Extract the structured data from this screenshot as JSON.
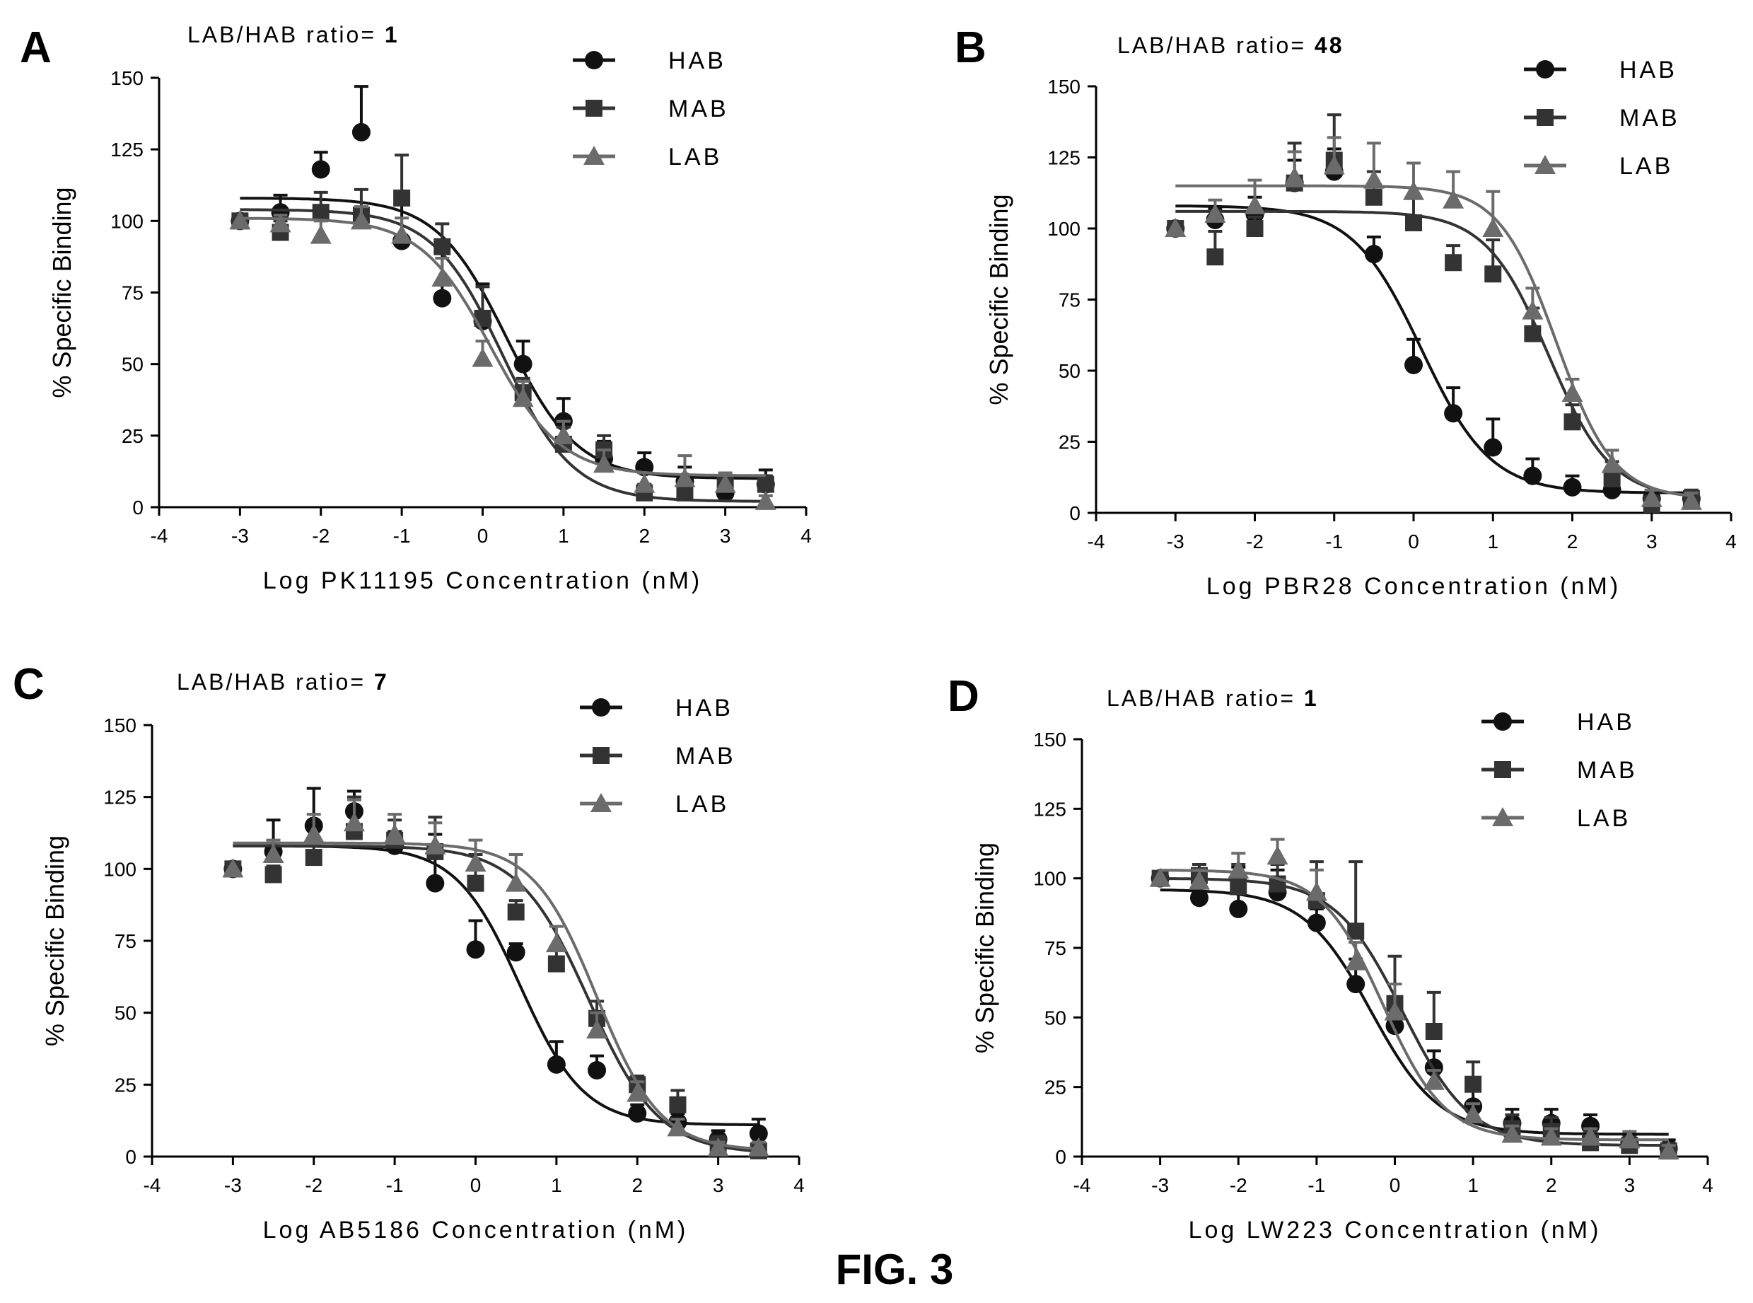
{
  "figure_label": "FIG. 3",
  "legend_labels": [
    "HAB",
    "MAB",
    "LAB"
  ],
  "colors": {
    "HAB": "#111111",
    "MAB": "#333333",
    "LAB": "#6b6b6b"
  },
  "chart_data": [
    {
      "type": "scatter",
      "panel": "A",
      "ratio_label": "LAB/HAB ratio= ",
      "ratio_value": "1",
      "xlabel": "Log PK11195 Concentration (nM)",
      "ylabel": "% Specific Binding",
      "xlim": [
        -4,
        4
      ],
      "ylim": [
        0,
        150
      ],
      "xticks": [
        "-4",
        "-3",
        "-2",
        "-1",
        "0",
        "1",
        "2",
        "3",
        "4"
      ],
      "yticks": [
        "0",
        "25",
        "50",
        "75",
        "100",
        "125",
        "150"
      ],
      "legend_position": "top-right",
      "series": [
        {
          "name": "HAB",
          "marker": "circle",
          "x": [
            -3,
            -2.5,
            -2,
            -1.5,
            -1,
            -0.5,
            0,
            0.5,
            1,
            1.5,
            2,
            2.5,
            3,
            3.5
          ],
          "y": [
            100,
            103,
            118,
            131,
            93,
            73,
            65,
            50,
            30,
            17,
            14,
            9,
            5,
            8
          ],
          "err": [
            0,
            6,
            6,
            16,
            17,
            17,
            13,
            8,
            8,
            6,
            5,
            5,
            5,
            5
          ],
          "fit": {
            "top": 108,
            "bottom": 10,
            "logic50": 0.3,
            "hill": 1
          }
        },
        {
          "name": "MAB",
          "marker": "square",
          "x": [
            -3,
            -2.5,
            -2,
            -1.5,
            -1,
            -0.5,
            0,
            0.5,
            1,
            1.5,
            2,
            2.5,
            3,
            3.5
          ],
          "y": [
            100,
            96,
            103,
            102,
            108,
            91,
            66,
            40,
            22,
            20,
            5,
            5,
            8,
            8
          ],
          "err": [
            0,
            4,
            7,
            9,
            15,
            8,
            11,
            5,
            6,
            5,
            3,
            4,
            3,
            3
          ],
          "fit": {
            "top": 104,
            "bottom": 2,
            "logic50": 0.25,
            "hill": 1
          }
        },
        {
          "name": "LAB",
          "marker": "triangle",
          "x": [
            -3,
            -2.5,
            -2,
            -1.5,
            -1,
            -0.5,
            0,
            0.5,
            1,
            1.5,
            2,
            2.5,
            3,
            3.5
          ],
          "y": [
            100,
            99,
            95,
            100,
            95,
            80,
            52,
            38,
            25,
            15,
            8,
            10,
            8,
            2
          ],
          "err": [
            0,
            3,
            5,
            5,
            6,
            7,
            6,
            6,
            5,
            5,
            4,
            8,
            4,
            2
          ],
          "fit": {
            "top": 101,
            "bottom": 11,
            "logic50": 0.1,
            "hill": 1
          }
        }
      ]
    },
    {
      "type": "scatter",
      "panel": "B",
      "ratio_label": "LAB/HAB ratio= ",
      "ratio_value": "48",
      "xlabel": "Log PBR28 Concentration (nM)",
      "ylabel": "% Specific Binding",
      "xlim": [
        -4,
        4
      ],
      "ylim": [
        0,
        150
      ],
      "xticks": [
        "-4",
        "-3",
        "-2",
        "-1",
        "0",
        "1",
        "2",
        "3",
        "4"
      ],
      "yticks": [
        "0",
        "25",
        "50",
        "75",
        "100",
        "125",
        "150"
      ],
      "legend_position": "top-right",
      "series": [
        {
          "name": "HAB",
          "marker": "circle",
          "x": [
            -3,
            -2.5,
            -2,
            -1.5,
            -1,
            -0.5,
            0,
            0.5,
            1,
            1.5,
            2,
            2.5,
            3,
            3.5
          ],
          "y": [
            100,
            103,
            105,
            116,
            120,
            91,
            52,
            35,
            23,
            13,
            9,
            8,
            5,
            5
          ],
          "err": [
            0,
            4,
            6,
            8,
            8,
            6,
            9,
            9,
            10,
            6,
            4,
            4,
            3,
            3
          ],
          "fit": {
            "top": 108,
            "bottom": 7,
            "logic50": 0.1,
            "hill": 1
          }
        },
        {
          "name": "MAB",
          "marker": "square",
          "x": [
            -3,
            -2.5,
            -2,
            -1.5,
            -1,
            -0.5,
            0,
            0.5,
            1,
            1.5,
            2,
            2.5,
            3,
            3.5
          ],
          "y": [
            100,
            90,
            100,
            116,
            124,
            111,
            102,
            88,
            84,
            63,
            32,
            12,
            3,
            5
          ],
          "err": [
            0,
            9,
            4,
            14,
            16,
            9,
            21,
            6,
            12,
            9,
            6,
            6,
            3,
            3
          ],
          "fit": {
            "top": 106,
            "bottom": 5,
            "logic50": 1.7,
            "hill": 1.1
          }
        },
        {
          "name": "LAB",
          "marker": "triangle",
          "x": [
            -3,
            -2.5,
            -2,
            -1.5,
            -1,
            -0.5,
            0,
            0.5,
            1,
            1.5,
            2,
            2.5,
            3,
            3.5
          ],
          "y": [
            100,
            105,
            108,
            118,
            122,
            117,
            113,
            110,
            100,
            71,
            42,
            17,
            5,
            4
          ],
          "err": [
            0,
            5,
            9,
            9,
            10,
            13,
            10,
            10,
            13,
            8,
            5,
            5,
            3,
            3
          ],
          "fit": {
            "top": 115,
            "bottom": 5,
            "logic50": 1.8,
            "hill": 1.2
          }
        }
      ]
    },
    {
      "type": "scatter",
      "panel": "C",
      "ratio_label": "LAB/HAB ratio= ",
      "ratio_value": "7",
      "xlabel": "Log AB5186 Concentration (nM)",
      "ylabel": "% Specific Binding",
      "xlim": [
        -4,
        4
      ],
      "ylim": [
        0,
        150
      ],
      "xticks": [
        "-4",
        "-3",
        "-2",
        "-1",
        "0",
        "1",
        "2",
        "3",
        "4"
      ],
      "yticks": [
        "0",
        "25",
        "50",
        "75",
        "100",
        "125",
        "150"
      ],
      "legend_position": "top-right",
      "series": [
        {
          "name": "HAB",
          "marker": "circle",
          "x": [
            -3,
            -2.5,
            -2,
            -1.5,
            -1,
            -0.5,
            0,
            0.5,
            1,
            1.5,
            2,
            2.5,
            3,
            3.5
          ],
          "y": [
            100,
            106,
            115,
            120,
            108,
            95,
            72,
            71,
            32,
            30,
            15,
            12,
            6,
            8
          ],
          "err": [
            0,
            11,
            13,
            7,
            5,
            17,
            10,
            3,
            8,
            5,
            3,
            3,
            3,
            5
          ],
          "fit": {
            "top": 108,
            "bottom": 11,
            "logic50": 0.55,
            "hill": 1.1
          }
        },
        {
          "name": "MAB",
          "marker": "square",
          "x": [
            -3,
            -2.5,
            -2,
            -1.5,
            -1,
            -0.5,
            0,
            0.5,
            1,
            1.5,
            2,
            2.5,
            3,
            3.5
          ],
          "y": [
            100,
            98,
            104,
            113,
            110,
            106,
            95,
            85,
            67,
            48,
            25,
            18,
            4,
            2
          ],
          "err": [
            0,
            3,
            4,
            12,
            7,
            12,
            10,
            4,
            6,
            6,
            3,
            5,
            3,
            2
          ],
          "fit": {
            "top": 108,
            "bottom": 1,
            "logic50": 1.4,
            "hill": 1
          }
        },
        {
          "name": "LAB",
          "marker": "triangle",
          "x": [
            -3,
            -2.5,
            -2,
            -1.5,
            -1,
            -0.5,
            0,
            0.5,
            1,
            1.5,
            2,
            2.5,
            3,
            3.5
          ],
          "y": [
            100,
            105,
            112,
            116,
            112,
            108,
            102,
            95,
            74,
            44,
            22,
            10,
            3,
            3
          ],
          "err": [
            0,
            5,
            7,
            8,
            7,
            8,
            8,
            10,
            6,
            6,
            4,
            3,
            2,
            2
          ],
          "fit": {
            "top": 109,
            "bottom": 2,
            "logic50": 1.5,
            "hill": 1.1
          }
        }
      ]
    },
    {
      "type": "scatter",
      "panel": "D",
      "ratio_label": "LAB/HAB ratio= ",
      "ratio_value": "1",
      "xlabel": "Log LW223 Concentration (nM)",
      "ylabel": "% Specific Binding",
      "xlim": [
        -4,
        4
      ],
      "ylim": [
        0,
        150
      ],
      "xticks": [
        "-4",
        "-3",
        "-2",
        "-1",
        "0",
        "1",
        "2",
        "3",
        "4"
      ],
      "yticks": [
        "0",
        "25",
        "50",
        "75",
        "100",
        "125",
        "150"
      ],
      "legend_position": "top-right",
      "series": [
        {
          "name": "HAB",
          "marker": "circle",
          "x": [
            -3,
            -2.5,
            -2,
            -1.5,
            -1,
            -0.5,
            0,
            0.5,
            1,
            1.5,
            2,
            2.5,
            3,
            3.5
          ],
          "y": [
            100,
            93,
            89,
            95,
            84,
            62,
            47,
            32,
            18,
            12,
            12,
            11,
            5,
            3
          ],
          "err": [
            0,
            6,
            15,
            8,
            5,
            9,
            7,
            6,
            6,
            5,
            5,
            4,
            3,
            3
          ],
          "fit": {
            "top": 96,
            "bottom": 8,
            "logic50": -0.3,
            "hill": 1
          }
        },
        {
          "name": "MAB",
          "marker": "square",
          "x": [
            -3,
            -2.5,
            -2,
            -1.5,
            -1,
            -0.5,
            0,
            0.5,
            1,
            1.5,
            2,
            2.5,
            3,
            3.5
          ],
          "y": [
            100,
            101,
            97,
            98,
            92,
            81,
            55,
            45,
            26,
            10,
            9,
            5,
            4,
            2
          ],
          "err": [
            0,
            4,
            8,
            7,
            14,
            25,
            17,
            14,
            8,
            5,
            5,
            4,
            3,
            2
          ],
          "fit": {
            "top": 100,
            "bottom": 4,
            "logic50": 0.1,
            "hill": 1
          }
        },
        {
          "name": "LAB",
          "marker": "triangle",
          "x": [
            -3,
            -2.5,
            -2,
            -1.5,
            -1,
            -0.5,
            0,
            0.5,
            1,
            1.5,
            2,
            2.5,
            3,
            3.5
          ],
          "y": [
            100,
            99,
            103,
            108,
            95,
            70,
            52,
            27,
            15,
            8,
            7,
            7,
            6,
            2
          ],
          "err": [
            0,
            4,
            6,
            6,
            8,
            7,
            10,
            4,
            4,
            3,
            3,
            3,
            3,
            2
          ],
          "fit": {
            "top": 103,
            "bottom": 6,
            "logic50": -0.15,
            "hill": 1.1
          }
        }
      ]
    }
  ]
}
